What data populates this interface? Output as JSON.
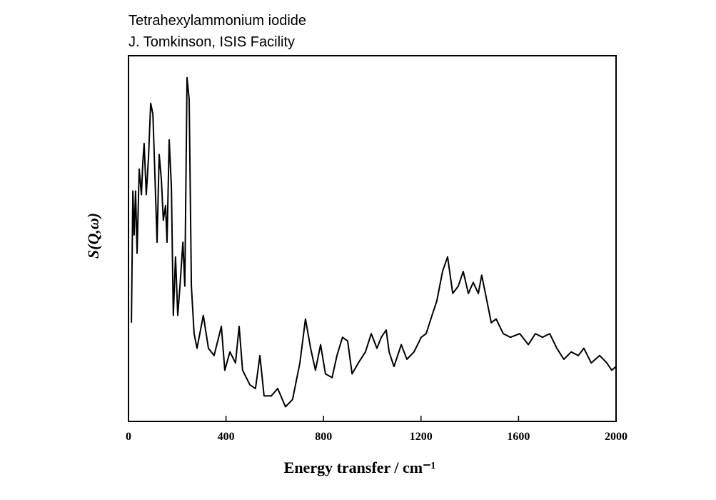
{
  "chart_data": {
    "type": "line",
    "title": "Tetrahexylammonium iodide",
    "subtitle": "J. Tomkinson, ISIS Facility",
    "x_label": "Energy transfer / cm⁻¹",
    "y_label": "S(Q,ω)",
    "xlim": [
      0,
      2000
    ],
    "xticks": [
      0,
      400,
      800,
      1200,
      1600,
      2000
    ],
    "ylim": [
      0,
      100
    ],
    "color": "#000000",
    "x": [
      12,
      18,
      23,
      29,
      35,
      44,
      53,
      59,
      64,
      73,
      82,
      91,
      100,
      108,
      117,
      126,
      135,
      143,
      152,
      158,
      167,
      176,
      184,
      193,
      202,
      211,
      223,
      231,
      240,
      249,
      258,
      269,
      281,
      307,
      328,
      351,
      381,
      395,
      416,
      439,
      454,
      468,
      498,
      521,
      539,
      556,
      586,
      612,
      644,
      673,
      703,
      726,
      747,
      767,
      788,
      808,
      835,
      855,
      878,
      899,
      917,
      943,
      972,
      996,
      1019,
      1037,
      1057,
      1069,
      1089,
      1119,
      1142,
      1171,
      1201,
      1221,
      1245,
      1265,
      1288,
      1309,
      1330,
      1353,
      1373,
      1394,
      1414,
      1435,
      1449,
      1470,
      1488,
      1508,
      1537,
      1567,
      1605,
      1640,
      1669,
      1698,
      1728,
      1757,
      1786,
      1816,
      1845,
      1868,
      1898,
      1933,
      1962,
      1982,
      2000
    ],
    "values": [
      27,
      63,
      51,
      63,
      46,
      69,
      62,
      71,
      76,
      62,
      72,
      87,
      84,
      68,
      49,
      73,
      66,
      55,
      59,
      49,
      77,
      64,
      29,
      45,
      29,
      37,
      49,
      37,
      94,
      88,
      37,
      24,
      20,
      29,
      20,
      18,
      26,
      14,
      19,
      16,
      26,
      14,
      10,
      9,
      18,
      7,
      7,
      9,
      4,
      6,
      16,
      28,
      20,
      14,
      21,
      13,
      12,
      18,
      23,
      22,
      13,
      16,
      19,
      24,
      20,
      23,
      25,
      19,
      15,
      21,
      17,
      19,
      23,
      24,
      29,
      33,
      41,
      45,
      35,
      37,
      41,
      35,
      38,
      35,
      40,
      33,
      27,
      28,
      24,
      23,
      24,
      21,
      24,
      23,
      24,
      20,
      17,
      19,
      18,
      20,
      16,
      18,
      16,
      14,
      15
    ]
  }
}
